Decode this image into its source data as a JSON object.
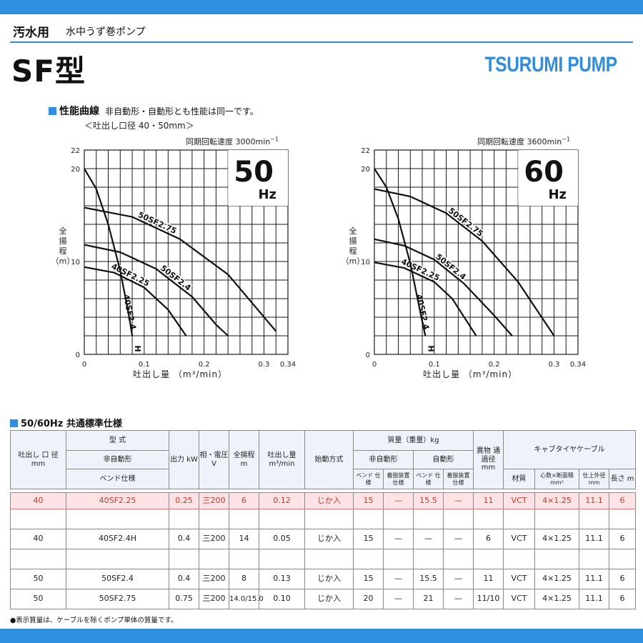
{
  "header": {
    "category": "汚水用",
    "subtitle": "水中うず巻ポンプ",
    "product_title": "SF型",
    "brand": "TSURUMI PUMP"
  },
  "performance": {
    "section_title": "性能曲線",
    "note": "非自動形・自動形とも性能は同一です。",
    "bore_note": "＜吐出し口径 40・50mm＞",
    "y_label": [
      "全",
      "揚",
      "程",
      "（m）"
    ],
    "x_label": "吐出し量 （m³/min）",
    "colors": {
      "accent": "#2f8ee0",
      "grid": "#1a1a1a",
      "curve": "#111111"
    }
  },
  "chart_data": [
    {
      "type": "line",
      "title": "50Hz",
      "title_big": "50",
      "title_unit": "Hz",
      "speed_label": "同期回転速度 3000min",
      "speed_sup": "−1",
      "xlabel": "吐出し量 （m³/min）",
      "ylabel": "全揚程（m）",
      "xlim": [
        0,
        0.34
      ],
      "ylim": [
        0,
        22
      ],
      "x_ticks": [
        "0",
        "0.1",
        "0.2",
        "0.3",
        "0.34"
      ],
      "y_ticks": [
        "0",
        "10",
        "20",
        "22"
      ],
      "grid": true,
      "series": [
        {
          "name": "50SF2.75",
          "x": [
            0,
            0.08,
            0.16,
            0.24,
            0.32
          ],
          "y": [
            15.8,
            14.8,
            12.4,
            8.6,
            2.5
          ]
        },
        {
          "name": "50SF2.4",
          "x": [
            0,
            0.06,
            0.12,
            0.18,
            0.22,
            0.24
          ],
          "y": [
            11.8,
            11.0,
            9.2,
            6.2,
            3.2,
            2.0
          ]
        },
        {
          "name": "40SF2.25",
          "x": [
            0,
            0.05,
            0.1,
            0.14,
            0.17
          ],
          "y": [
            9.4,
            8.8,
            7.2,
            4.8,
            2.0
          ]
        },
        {
          "name": "40SF2.4H",
          "x": [
            0,
            0.02,
            0.04,
            0.06,
            0.075,
            0.08
          ],
          "y": [
            20.0,
            17.8,
            14.0,
            9.0,
            4.0,
            2.0
          ]
        }
      ]
    },
    {
      "type": "line",
      "title": "60Hz",
      "title_big": "60",
      "title_unit": "Hz",
      "speed_label": "同期回転速度 3600min",
      "speed_sup": "−1",
      "xlabel": "吐出し量 （m³/min）",
      "ylabel": "全揚程（m）",
      "xlim": [
        0,
        0.34
      ],
      "ylim": [
        0,
        22
      ],
      "x_ticks": [
        "0",
        "0.1",
        "0.2",
        "0.3",
        "0.34"
      ],
      "y_ticks": [
        "0",
        "10",
        "20",
        "22"
      ],
      "grid": true,
      "series": [
        {
          "name": "50SF2.75",
          "x": [
            0,
            0.06,
            0.12,
            0.18,
            0.24,
            0.3
          ],
          "y": [
            17.8,
            17.0,
            15.2,
            12.2,
            7.8,
            2.0
          ]
        },
        {
          "name": "50SF2.4",
          "x": [
            0,
            0.05,
            0.1,
            0.15,
            0.2,
            0.23
          ],
          "y": [
            12.4,
            11.7,
            10.2,
            7.6,
            4.2,
            2.0
          ]
        },
        {
          "name": "40SF2.25",
          "x": [
            0,
            0.05,
            0.1,
            0.13,
            0.17
          ],
          "y": [
            9.9,
            9.3,
            7.8,
            6.0,
            2.0
          ]
        },
        {
          "name": "40SF2.4H",
          "x": [
            0,
            0.02,
            0.04,
            0.06,
            0.08,
            0.085
          ],
          "y": [
            20.0,
            18.0,
            14.6,
            9.8,
            3.5,
            2.0
          ]
        }
      ]
    }
  ],
  "spec": {
    "section_title": "50/60Hz 共通標準仕様",
    "headers": {
      "bore": "吐出し 口 径 mm",
      "model": "型 式",
      "non_auto": "非自動形",
      "bend": "ベンド仕様",
      "output": "出力 kW",
      "phase_voltage": "相・電圧 V",
      "head": "全揚程 m",
      "discharge": "吐出し量 m³/min",
      "start": "始動方式",
      "mass": "質量（重量）kg",
      "mass_non_auto": "非自動形",
      "mass_auto": "自動形",
      "bend_spec": "ベンド 仕様",
      "detach_spec": "着脱装置 仕様",
      "solids": "異物 通過径 mm",
      "cable": "キャブタイヤケーブル",
      "material": "材質",
      "core": "心数×断面積 mm²",
      "od": "仕上外径 mm",
      "length": "長さ m"
    },
    "rows": [
      {
        "bore": "40",
        "model": "40SF2.25",
        "output": "0.25",
        "voltage": "三200",
        "head": "6",
        "discharge": "0.12",
        "start": "じか入",
        "m1": "15",
        "m2": "—",
        "m3": "15.5",
        "m4": "—",
        "solids": "11",
        "material": "VCT",
        "core": "4×1.25",
        "od": "11.1",
        "length": "6"
      },
      {
        "bore": "40",
        "model": "40SF2.4H",
        "output": "0.4",
        "voltage": "三200",
        "head": "14",
        "discharge": "0.05",
        "start": "じか入",
        "m1": "15",
        "m2": "—",
        "m3": "—",
        "m4": "—",
        "solids": "6",
        "material": "VCT",
        "core": "4×1.25",
        "od": "11.1",
        "length": "6"
      },
      {
        "bore": "50",
        "model": "50SF2.4",
        "output": "0.4",
        "voltage": "三200",
        "head": "8",
        "discharge": "0.13",
        "start": "じか入",
        "m1": "15",
        "m2": "—",
        "m3": "15.5",
        "m4": "—",
        "solids": "11",
        "material": "VCT",
        "core": "4×1.25",
        "od": "11.1",
        "length": "6"
      },
      {
        "bore": "50",
        "model": "50SF2.75",
        "output": "0.75",
        "voltage": "三200",
        "head": "14.0/15.0",
        "discharge": "0.10",
        "start": "じか入",
        "m1": "20",
        "m2": "—",
        "m3": "21",
        "m4": "—",
        "solids": "11/10",
        "material": "VCT",
        "core": "4×1.25",
        "od": "11.1",
        "length": "6"
      }
    ]
  },
  "footnote": "●表示質量は、ケーブルを除くポンプ単体の質量です。"
}
